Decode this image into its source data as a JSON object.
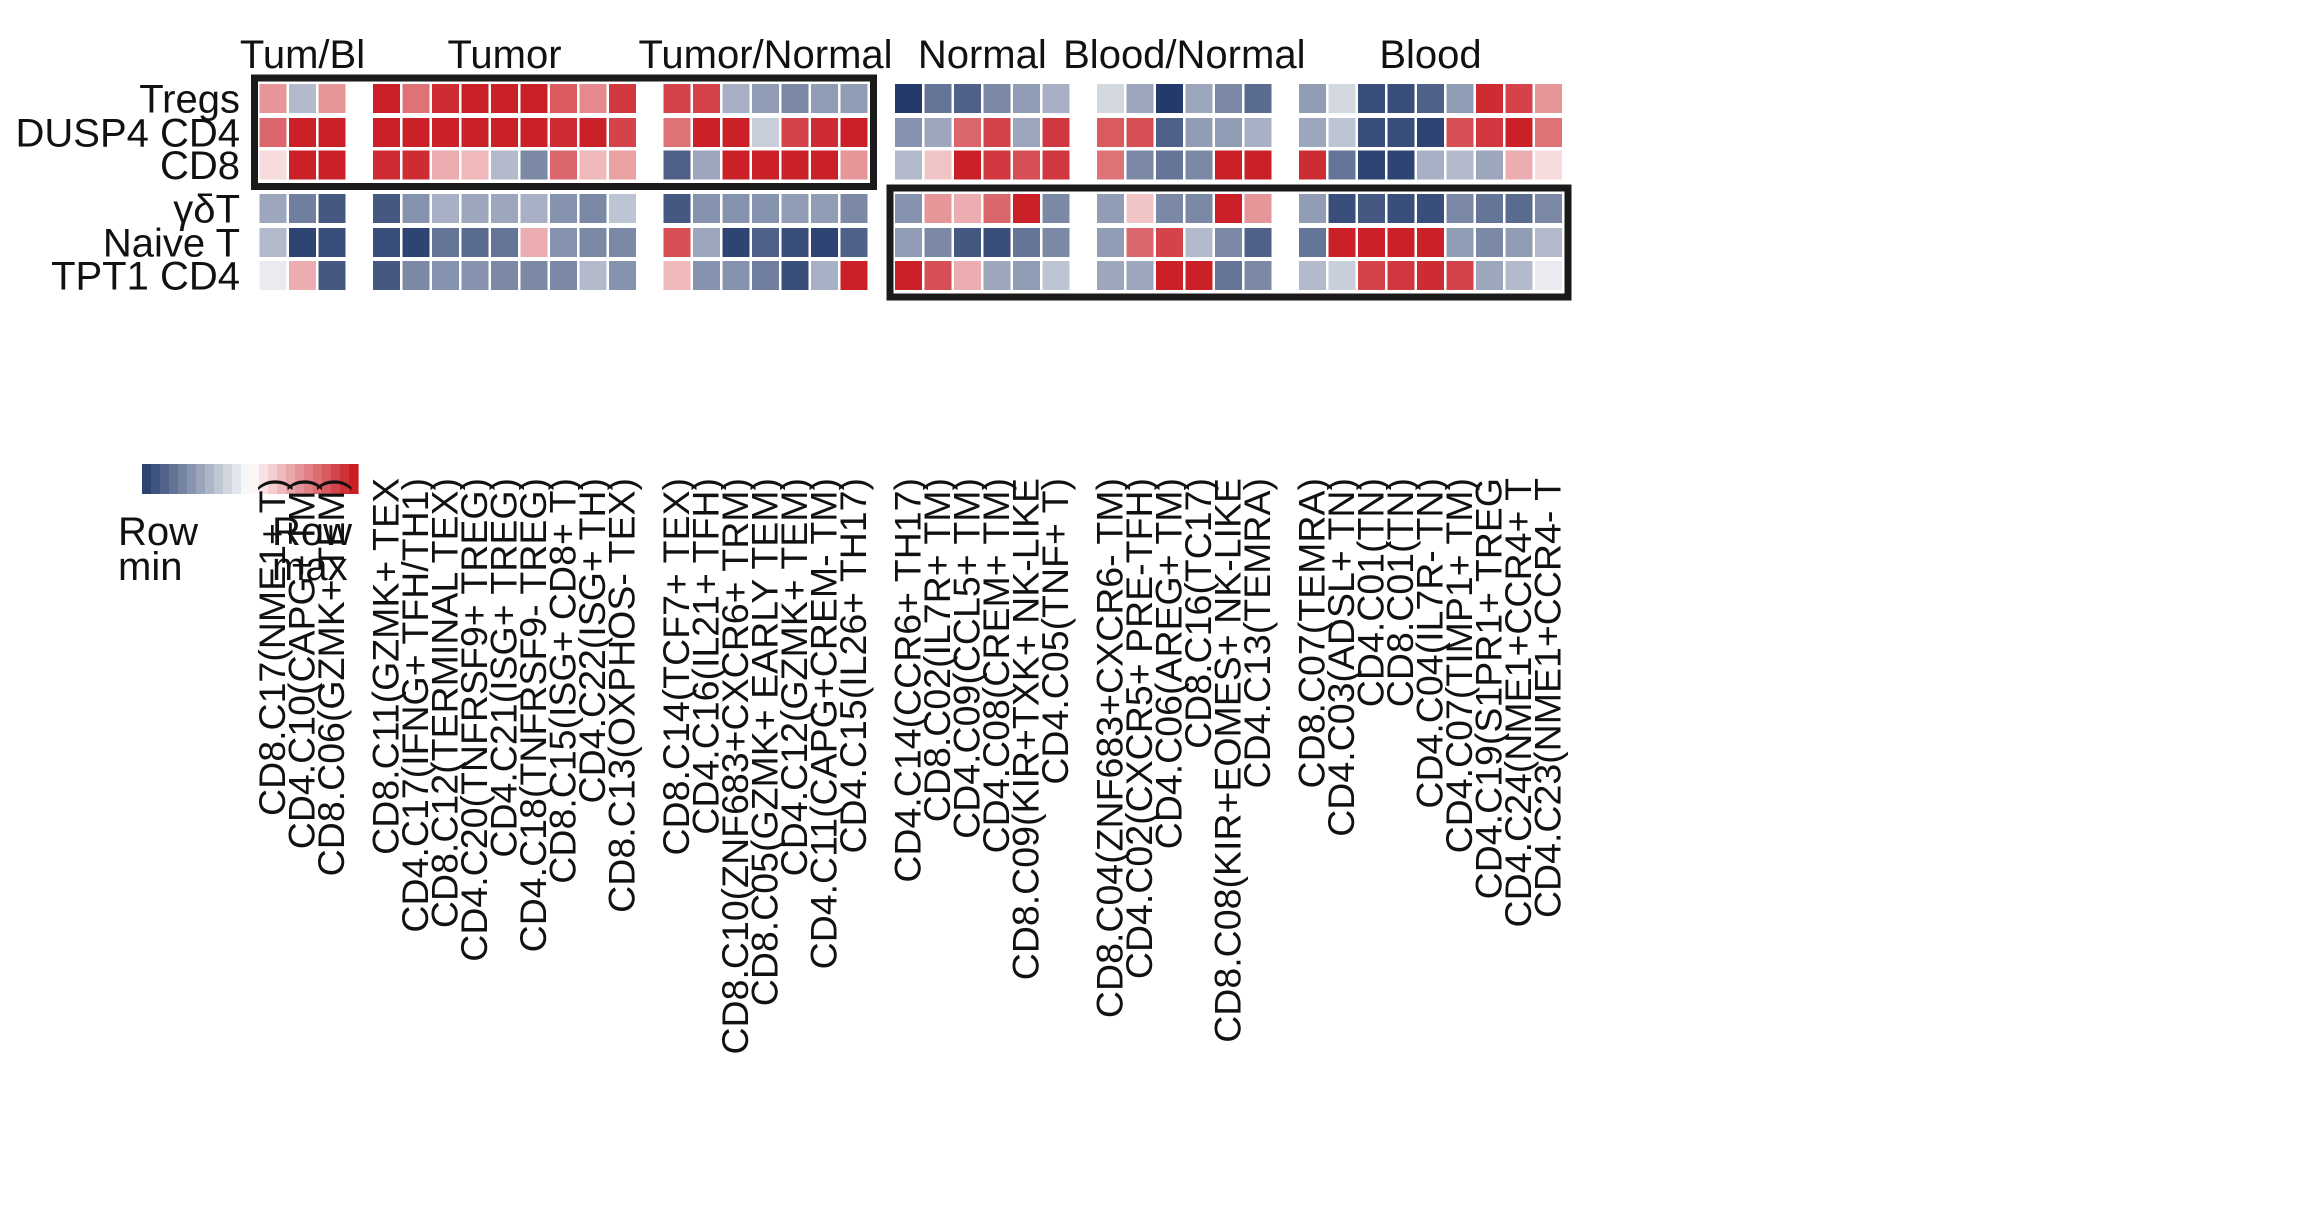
{
  "chart_data": {
    "type": "heatmap",
    "title": "",
    "rows": [
      "Tregs",
      "DUSP4 CD4",
      "CD8",
      "γδT",
      "Naive T",
      "TPT1 CD4"
    ],
    "groups": [
      {
        "label": "Tum/Bl",
        "count": 3
      },
      {
        "label": "Tumor",
        "count": 9
      },
      {
        "label": "Tumor/Normal",
        "count": 7
      },
      {
        "label": "Normal",
        "count": 6
      },
      {
        "label": "Blood/Normal",
        "count": 6
      },
      {
        "label": "Blood",
        "count": 9
      }
    ],
    "columns": [
      "CD8.C17(NME1+ T)",
      "CD4.C10(CAPG+ TM)",
      "CD8.C06(GZMK+ TEM)",
      "CD8.C11(GZMK+ TEX",
      "CD4.C17(IFNG+ TFH/TH1)",
      "CD8.C12(TERMINAL TEX)",
      "CD4.C20(TNFRSF9+ TREG)",
      "CD4.C21(ISG+ TREG)",
      "CD4.C18(TNFRSF9- TREG)",
      "CD8.C15(ISG+ CD8+ T)",
      "CD4.C22(ISG+ TH)",
      "CD8.C13(OXPHOS- TEX)",
      "CD8.C14(TCF7+ TEX)",
      "CD4.C16(IL21+ TFH)",
      "CD8.C10(ZNF683+CXCR6+ TRM)",
      "CD8.C05(GZMK+ EARLY TEM)",
      "CD4.C12(GZMK+ TEM)",
      "CD4.C11(CAPG+CREM- TM)",
      "CD4.C15(IL26+ TH17)",
      "CD4.C14(CCR6+ TH17)",
      "CD8.C02(IL7R+ TM)",
      "CD4.C09(CCL5+ TM)",
      "CD4.C08(CREM+ TM)",
      "CD8.C09(KIR+TXK+ NK-LIKE",
      "CD4.C05(TNF+ T)",
      "CD8.C04(ZNF683+CXCR6- TM)",
      "CD4.C02(CXCR5+ PRE-TFH)",
      "CD4.C06(AREG+ TM)",
      "CD8.C16(TC17)",
      "CD8.C08(KIR+EOMES+ NK-LIKE",
      "CD4.C13(TEMRA)",
      "CD8.C07(TEMRA)",
      "CD4.C03(ADSL+ TN)",
      "CD4.C01(TN)",
      "CD8.C01(TN)",
      "CD4.C04(IL7R- TN)",
      "CD4.C07(TIMP1+ TM)",
      "CD4.C19(S1PR1+ TREG",
      "CD4.C24(NME1+CCR4+ T",
      "CD4.C23(NME1+CCR4- T"
    ],
    "values": [
      [
        0.45,
        -0.35,
        0.45,
        0.95,
        0.6,
        0.9,
        0.95,
        0.95,
        0.95,
        0.7,
        0.5,
        0.85,
        0.8,
        0.8,
        -0.4,
        -0.5,
        -0.6,
        -0.5,
        -0.5,
        -1.0,
        -0.7,
        -0.8,
        -0.6,
        -0.5,
        -0.4,
        -0.2,
        -0.45,
        -1.0,
        -0.45,
        -0.6,
        -0.75,
        -0.5,
        -0.2,
        -0.9,
        -0.9,
        -0.8,
        -0.5,
        0.9,
        0.8,
        0.45
      ],
      [
        0.65,
        0.95,
        0.95,
        0.95,
        0.95,
        0.95,
        0.95,
        0.95,
        0.95,
        0.9,
        0.95,
        0.8,
        0.6,
        0.95,
        0.95,
        -0.25,
        0.8,
        0.9,
        0.95,
        -0.55,
        -0.45,
        0.65,
        0.8,
        -0.45,
        0.85,
        0.7,
        0.75,
        -0.8,
        -0.5,
        -0.5,
        -0.4,
        -0.45,
        -0.3,
        -0.9,
        -0.9,
        -0.95,
        0.75,
        0.85,
        0.95,
        0.6
      ],
      [
        0.15,
        0.95,
        0.95,
        0.9,
        0.9,
        0.35,
        0.3,
        -0.35,
        -0.6,
        0.65,
        0.3,
        0.4,
        -0.8,
        -0.45,
        0.95,
        0.95,
        0.95,
        0.95,
        0.45,
        -0.35,
        0.25,
        0.95,
        0.85,
        0.75,
        0.85,
        0.6,
        -0.6,
        -0.7,
        -0.6,
        0.95,
        0.95,
        0.9,
        -0.7,
        -0.95,
        -0.95,
        -0.4,
        -0.35,
        -0.45,
        0.35,
        0.15
      ],
      [
        -0.45,
        -0.65,
        -0.85,
        -0.85,
        -0.55,
        -0.4,
        -0.45,
        -0.45,
        -0.4,
        -0.55,
        -0.6,
        -0.3,
        -0.85,
        -0.55,
        -0.55,
        -0.55,
        -0.5,
        -0.5,
        -0.6,
        -0.55,
        0.45,
        0.35,
        0.65,
        0.95,
        -0.6,
        -0.5,
        0.25,
        -0.6,
        -0.6,
        0.95,
        0.45,
        -0.5,
        -0.9,
        -0.85,
        -0.9,
        -0.9,
        -0.6,
        -0.7,
        -0.75,
        -0.6
      ],
      [
        -0.35,
        -0.95,
        -0.9,
        -0.9,
        -0.95,
        -0.7,
        -0.75,
        -0.7,
        0.35,
        -0.55,
        -0.6,
        -0.6,
        0.75,
        -0.45,
        -0.95,
        -0.8,
        -0.9,
        -0.95,
        -0.8,
        -0.5,
        -0.6,
        -0.85,
        -0.9,
        -0.7,
        -0.6,
        -0.5,
        0.65,
        0.8,
        -0.35,
        -0.6,
        -0.8,
        -0.7,
        0.95,
        0.95,
        0.95,
        0.95,
        -0.5,
        -0.6,
        -0.5,
        -0.35
      ],
      [
        -0.1,
        0.35,
        -0.85,
        -0.85,
        -0.6,
        -0.55,
        -0.55,
        -0.6,
        -0.6,
        -0.6,
        -0.35,
        -0.55,
        0.3,
        -0.55,
        -0.55,
        -0.65,
        -0.9,
        -0.4,
        0.95,
        0.95,
        0.75,
        0.35,
        -0.45,
        -0.5,
        -0.3,
        -0.45,
        -0.45,
        0.95,
        0.95,
        -0.7,
        -0.6,
        -0.35,
        -0.25,
        0.8,
        0.85,
        0.9,
        0.8,
        -0.45,
        -0.35,
        -0.1
      ]
    ],
    "color_scale": {
      "min_color": "#233a6b",
      "mid_color": "#ffffff",
      "max_color": "#c8141c"
    },
    "legend": {
      "min_label_1": "Row",
      "min_label_2": "min",
      "max_label_1": "Row",
      "max_label_2": "max"
    },
    "highlight_boxes": [
      {
        "rows": [
          0,
          2
        ],
        "columns": [
          0,
          18
        ]
      },
      {
        "rows": [
          3,
          5
        ],
        "columns": [
          19,
          39
        ]
      }
    ]
  }
}
